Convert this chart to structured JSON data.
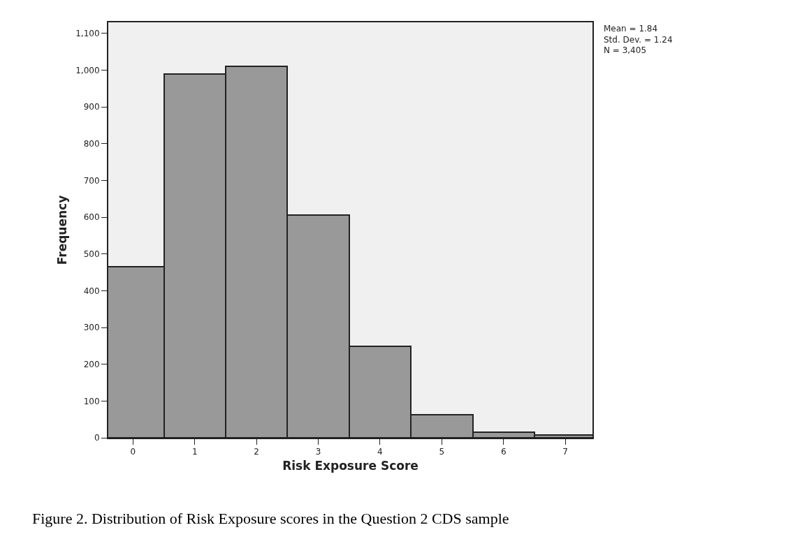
{
  "chart_data": {
    "type": "histogram",
    "xlabel": "Risk Exposure Score",
    "ylabel": "Frequency",
    "bins": [
      -0.5,
      0.5,
      1.5,
      2.5,
      3.5,
      4.5,
      5.5,
      6.5,
      7.5
    ],
    "values": [
      466,
      989,
      1010,
      606,
      248,
      62,
      16,
      8
    ],
    "color": "#999999",
    "xlim": [
      -0.4,
      7.44
    ],
    "xticks": [
      0,
      1,
      2,
      3,
      4,
      5,
      6,
      7
    ],
    "ylim": [
      0,
      1130
    ],
    "yticks": [
      0,
      100,
      200,
      300,
      400,
      500,
      600,
      700,
      800,
      900,
      {
        "value": 1000,
        "label": "1,000"
      },
      {
        "value": 1100,
        "label": "1,100"
      }
    ],
    "grid": false,
    "annotations": [
      "Mean = 1.84\nStd. Dev. = 1.24\nN = 3,405",
      "Figure 2. Distribution of Risk Exposure scores in the Question 2 CDS sample"
    ]
  }
}
